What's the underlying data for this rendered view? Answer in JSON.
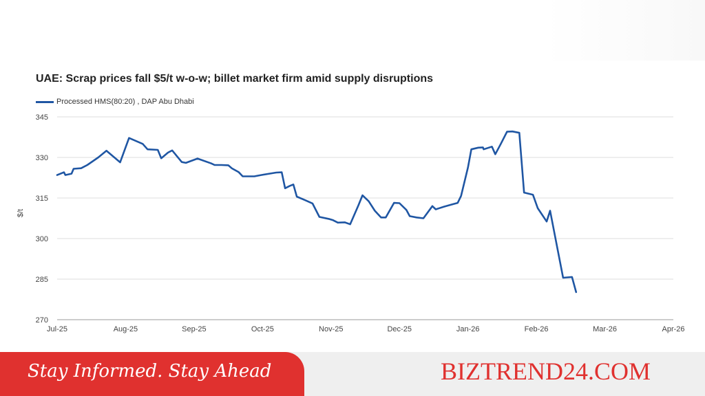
{
  "chart_data": {
    "type": "line",
    "title": "UAE: Scrap prices fall $5/t w-o-w; billet market firm amid supply disruptions",
    "ylabel": "$/t",
    "xlabel": "",
    "ylim": [
      270,
      345
    ],
    "yticks": [
      270,
      285,
      300,
      315,
      330,
      345
    ],
    "x_ticks": [
      "Jul-25",
      "Aug-25",
      "Sep-25",
      "Oct-25",
      "Nov-25",
      "Dec-25",
      "Jan-26",
      "Feb-26",
      "Mar-26",
      "Apr-26"
    ],
    "grid": "horizontal",
    "legend_position": "top-left",
    "line_color": "#1f56a3",
    "series": [
      {
        "name": "Processed HMS(80:20) , DAP Abu Dhabi",
        "points": [
          [
            0,
            323.5
          ],
          [
            0.05,
            324
          ],
          [
            0.1,
            324.5
          ],
          [
            0.12,
            323.5
          ],
          [
            0.21,
            324
          ],
          [
            0.24,
            325.8
          ],
          [
            0.35,
            326
          ],
          [
            0.44,
            327.2
          ],
          [
            0.6,
            330
          ],
          [
            0.72,
            332.5
          ],
          [
            0.92,
            328.2
          ],
          [
            1.05,
            337.2
          ],
          [
            1.25,
            335
          ],
          [
            1.32,
            333
          ],
          [
            1.47,
            332.8
          ],
          [
            1.52,
            329.7
          ],
          [
            1.62,
            331.8
          ],
          [
            1.68,
            332.6
          ],
          [
            1.82,
            328.3
          ],
          [
            1.88,
            328
          ],
          [
            2.05,
            329.6
          ],
          [
            2.25,
            327.8
          ],
          [
            2.3,
            327.2
          ],
          [
            2.4,
            327.2
          ],
          [
            2.5,
            327.1
          ],
          [
            2.55,
            326
          ],
          [
            2.65,
            324.6
          ],
          [
            2.71,
            323
          ],
          [
            2.88,
            323
          ],
          [
            2.98,
            323.5
          ],
          [
            3.1,
            324
          ],
          [
            3.2,
            324.4
          ],
          [
            3.28,
            324.5
          ],
          [
            3.33,
            318.6
          ],
          [
            3.4,
            319.5
          ],
          [
            3.45,
            320
          ],
          [
            3.5,
            315.5
          ],
          [
            3.62,
            314.2
          ],
          [
            3.73,
            313
          ],
          [
            3.83,
            308
          ],
          [
            3.98,
            307.2
          ],
          [
            4.03,
            306.8
          ],
          [
            4.1,
            305.9
          ],
          [
            4.2,
            306
          ],
          [
            4.28,
            305.3
          ],
          [
            4.4,
            312.3
          ],
          [
            4.46,
            316
          ],
          [
            4.55,
            313.8
          ],
          [
            4.64,
            310.3
          ],
          [
            4.73,
            307.8
          ],
          [
            4.8,
            307.8
          ],
          [
            4.92,
            313.2
          ],
          [
            5.0,
            313.1
          ],
          [
            5.1,
            310.6
          ],
          [
            5.15,
            308.3
          ],
          [
            5.25,
            307.8
          ],
          [
            5.35,
            307.5
          ],
          [
            5.48,
            312
          ],
          [
            5.53,
            310.8
          ],
          [
            5.65,
            311.8
          ],
          [
            5.78,
            312.7
          ],
          [
            5.85,
            313.2
          ],
          [
            5.9,
            315.8
          ],
          [
            6.0,
            326.3
          ],
          [
            6.05,
            333
          ],
          [
            6.15,
            333.6
          ],
          [
            6.22,
            333.7
          ],
          [
            6.23,
            333
          ],
          [
            6.35,
            334
          ],
          [
            6.4,
            331.2
          ],
          [
            6.48,
            335
          ],
          [
            6.57,
            339.5
          ],
          [
            6.65,
            339.6
          ],
          [
            6.75,
            339.1
          ],
          [
            6.82,
            317
          ],
          [
            6.95,
            316.2
          ],
          [
            7.02,
            311.2
          ],
          [
            7.15,
            306.3
          ],
          [
            7.2,
            310.3
          ],
          [
            7.31,
            296
          ],
          [
            7.39,
            285.5
          ],
          [
            7.52,
            285.8
          ],
          [
            7.58,
            280.2
          ]
        ]
      }
    ]
  },
  "banner": {
    "tagline": "Stay Informed. Stay Ahead",
    "brand": "BIZTREND24.COM"
  }
}
